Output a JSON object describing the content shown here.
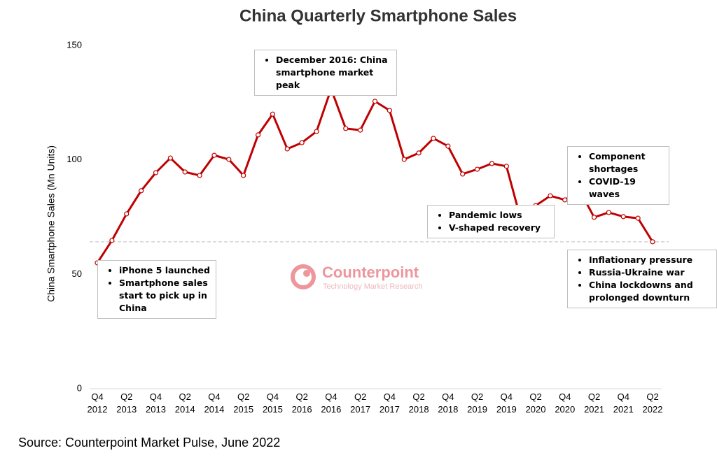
{
  "chart_data": {
    "type": "line",
    "title": "China Quarterly Smartphone Sales",
    "y_label": "China Smartphone Sales (Mn Units)",
    "source": "Source: Counterpoint Market Pulse, June 2022",
    "watermark": {
      "name": "Counterpoint",
      "tagline": "Technology Market Research"
    },
    "categories": [
      "Q4 2012",
      null,
      "Q2 2013",
      null,
      "Q4 2013",
      null,
      "Q2 2014",
      null,
      "Q4 2014",
      null,
      "Q2 2015",
      null,
      "Q4 2015",
      null,
      "Q2 2016",
      null,
      "Q4 2016",
      null,
      "Q2 2017",
      null,
      "Q4 2017",
      null,
      "Q2 2018",
      null,
      "Q4 2018",
      null,
      "Q2 2019",
      null,
      "Q4 2019",
      null,
      "Q2 2020",
      null,
      "Q4 2020",
      null,
      "Q2 2021",
      null,
      "Q4 2021",
      null,
      "Q2 2022"
    ],
    "series": [
      {
        "name": "China smartphone sales",
        "color": "#c00000",
        "values": [
          55,
          64.8,
          76.4,
          86.5,
          94.4,
          100.8,
          94.7,
          93.2,
          102,
          100.2,
          93.2,
          110.9,
          120,
          104.8,
          107.5,
          112.4,
          131,
          113.7,
          113,
          125.6,
          121.6,
          100.2,
          103,
          109.4,
          106,
          93.8,
          95.9,
          98.4,
          97.2,
          73.6,
          80,
          84.3,
          82.5,
          86.8,
          74.9,
          77,
          75.2,
          74.5,
          64.2
        ]
      }
    ],
    "reference_line": 64.2,
    "ylim": [
      0,
      150
    ],
    "yticks": [
      0,
      50,
      100,
      150
    ],
    "annotations": [
      {
        "bullets": [
          "iPhone 5 launched",
          "Smartphone sales start to pick up in China"
        ]
      },
      {
        "bullets": [
          "December 2016: China smartphone market peak"
        ]
      },
      {
        "bullets": [
          "Component shortages",
          "COVID-19 waves"
        ]
      },
      {
        "bullets": [
          "Pandemic lows",
          "V-shaped recovery"
        ]
      },
      {
        "bullets": [
          "Inflationary pressure",
          "Russia-Ukraine war",
          "China lockdowns and prolonged downturn"
        ]
      }
    ]
  }
}
